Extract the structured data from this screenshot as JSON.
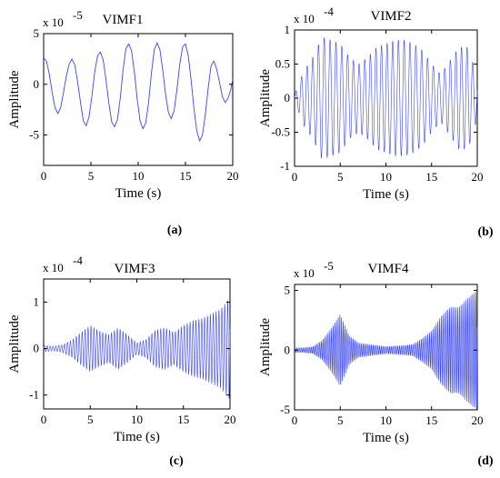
{
  "chart_data": [
    {
      "type": "line",
      "panel_label": "(a)",
      "title": "VIMF1",
      "xlabel": "Time (s)",
      "ylabel": "Amplitude",
      "multiplier": "x 10",
      "exponent": "-5",
      "xlim": [
        0,
        20
      ],
      "ylim": [
        -8,
        5
      ],
      "xticks": [
        "0",
        "5",
        "10",
        "15",
        "20"
      ],
      "yticks": [
        "5",
        "0",
        "-5"
      ],
      "xtick_values": [
        0,
        5,
        10,
        15,
        20
      ],
      "ytick_values": [
        5,
        0,
        -5
      ],
      "color": "#3b47e6",
      "series": [
        {
          "x": [
            0,
            0.3,
            0.6,
            0.9,
            1.2,
            1.5,
            1.8,
            2.1,
            2.4,
            2.7,
            3.0,
            3.3,
            3.6,
            3.9,
            4.2,
            4.5,
            4.8,
            5.1,
            5.4,
            5.7,
            6.0,
            6.3,
            6.6,
            6.9,
            7.2,
            7.5,
            7.8,
            8.1,
            8.4,
            8.7,
            9.0,
            9.3,
            9.6,
            9.9,
            10.2,
            10.5,
            10.8,
            11.1,
            11.4,
            11.7,
            12.0,
            12.3,
            12.6,
            12.9,
            13.2,
            13.5,
            13.8,
            14.1,
            14.4,
            14.7,
            15.0,
            15.3,
            15.6,
            15.9,
            16.2,
            16.5,
            16.8,
            17.1,
            17.4,
            17.7,
            18.0,
            18.3,
            18.6,
            18.9,
            19.2,
            19.5,
            19.8,
            20.0
          ],
          "values": [
            2.6,
            2.3,
            1.0,
            -0.8,
            -2.3,
            -2.9,
            -2.3,
            -0.8,
            0.8,
            2.0,
            2.5,
            1.9,
            0.2,
            -1.8,
            -3.6,
            -4.1,
            -3.2,
            -1.2,
            1.2,
            2.8,
            3.2,
            2.4,
            0.4,
            -1.9,
            -3.7,
            -4.2,
            -3.5,
            -1.4,
            1.4,
            3.5,
            4.0,
            3.3,
            1.2,
            -1.5,
            -3.6,
            -4.4,
            -3.8,
            -1.8,
            1.1,
            3.4,
            4.1,
            3.4,
            1.4,
            -1.0,
            -2.8,
            -3.4,
            -2.6,
            -0.5,
            2.0,
            3.7,
            4.0,
            2.8,
            0.4,
            -2.4,
            -4.6,
            -5.6,
            -5.0,
            -3.0,
            -0.4,
            1.8,
            2.3,
            1.5,
            0.2,
            -1.2,
            -1.8,
            -1.4,
            -0.5,
            0.5
          ]
        }
      ]
    },
    {
      "type": "line",
      "panel_label": "(b)",
      "title": "VIMF2",
      "xlabel": "Time (s)",
      "ylabel": "Amplitude",
      "multiplier": "x 10",
      "exponent": "-4",
      "xlim": [
        0,
        20
      ],
      "ylim": [
        -1,
        1
      ],
      "xticks": [
        "0",
        "5",
        "10",
        "15",
        "20"
      ],
      "yticks": [
        "1",
        "0.5",
        "0",
        "-0.5",
        "-1"
      ],
      "xtick_values": [
        0,
        5,
        10,
        15,
        20
      ],
      "ytick_values": [
        1,
        0.5,
        0,
        -0.5,
        -1
      ],
      "color": "#3b47e6",
      "series": [
        {
          "frequency_hz": 1.6,
          "x": [
            0,
            1,
            2,
            3,
            4,
            5,
            6,
            7,
            8,
            9,
            10,
            11,
            12,
            13,
            14,
            15,
            16,
            17,
            18,
            19,
            20
          ],
          "values": [
            0.05,
            0.4,
            0.6,
            0.9,
            0.85,
            0.8,
            0.6,
            0.5,
            0.6,
            0.75,
            0.8,
            0.85,
            0.85,
            0.8,
            0.7,
            0.5,
            0.35,
            0.55,
            0.75,
            0.75,
            0.3
          ]
        }
      ]
    },
    {
      "type": "line",
      "panel_label": "(c)",
      "title": "VIMF3",
      "xlabel": "Time (s)",
      "ylabel": "Amplitude",
      "multiplier": "x 10",
      "exponent": "-4",
      "xlim": [
        0,
        20
      ],
      "ylim": [
        -1.3,
        1.5
      ],
      "xticks": [
        "0",
        "5",
        "10",
        "15",
        "20"
      ],
      "yticks": [
        "1",
        "0",
        "-1"
      ],
      "xtick_values": [
        0,
        5,
        10,
        15,
        20
      ],
      "ytick_values": [
        1,
        0,
        -1
      ],
      "color": "#3b47e6",
      "series": [
        {
          "frequency_hz": 3.2,
          "x": [
            0,
            1,
            2,
            3,
            4,
            5,
            6,
            7,
            8,
            9,
            10,
            11,
            12,
            13,
            14,
            15,
            16,
            17,
            18,
            19,
            20
          ],
          "values": [
            0.07,
            0.05,
            0.08,
            0.18,
            0.35,
            0.5,
            0.38,
            0.3,
            0.45,
            0.3,
            0.12,
            0.2,
            0.4,
            0.45,
            0.35,
            0.5,
            0.6,
            0.65,
            0.75,
            0.85,
            1.1
          ]
        }
      ]
    },
    {
      "type": "line",
      "panel_label": "(d)",
      "title": "VIMF4",
      "xlabel": "Time (s)",
      "ylabel": "Amplitude",
      "multiplier": "x 10",
      "exponent": "-5",
      "xlim": [
        0,
        20
      ],
      "ylim": [
        -5,
        5.5
      ],
      "xticks": [
        "0",
        "5",
        "10",
        "15",
        "20"
      ],
      "yticks": [
        "5",
        "0",
        "-5"
      ],
      "xtick_values": [
        0,
        5,
        10,
        15,
        20
      ],
      "ytick_values": [
        5,
        0,
        -5
      ],
      "color": "#3b47e6",
      "series": [
        {
          "frequency_hz": 5.5,
          "x": [
            0,
            1,
            2,
            3,
            4,
            5,
            6,
            7,
            8,
            9,
            10,
            11,
            12,
            13,
            14,
            15,
            16,
            17,
            18,
            19,
            20
          ],
          "values": [
            0.2,
            0.2,
            0.3,
            0.8,
            1.8,
            3.0,
            1.2,
            0.6,
            0.5,
            0.4,
            0.3,
            0.35,
            0.4,
            0.5,
            1.0,
            1.6,
            2.8,
            3.6,
            3.6,
            4.4,
            5.0
          ]
        }
      ]
    }
  ]
}
